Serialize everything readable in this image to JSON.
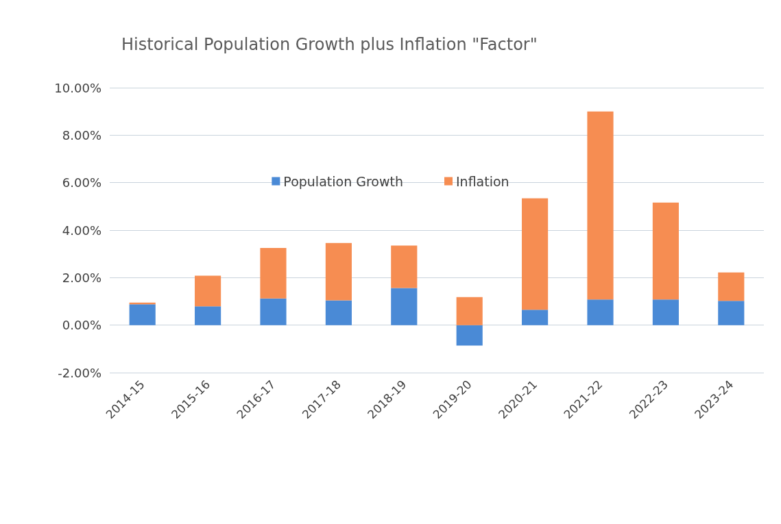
{
  "chart_data": {
    "type": "bar",
    "title": "Historical Population Growth plus Inflation \"Factor\"",
    "categories": [
      "2014-15",
      "2015-16",
      "2016-17",
      "2017-18",
      "2018-19",
      "2019-20",
      "2020-21",
      "2021-22",
      "2022-23",
      "2023-24"
    ],
    "series": [
      {
        "name": "Population Growth",
        "color": "#4a8ad6",
        "values": [
          0.88,
          0.79,
          1.12,
          1.04,
          1.56,
          -0.86,
          0.65,
          1.08,
          1.08,
          1.02
        ]
      },
      {
        "name": "Inflation",
        "color": "#f68d52",
        "values": [
          0.07,
          1.29,
          2.13,
          2.42,
          1.79,
          1.18,
          4.69,
          7.92,
          4.08,
          1.2
        ]
      }
    ],
    "stacked": true,
    "ylim": [
      -2,
      10
    ],
    "yticks": [
      {
        "value": -2,
        "label": "-2.00%"
      },
      {
        "value": 0,
        "label": "0.00%"
      },
      {
        "value": 2,
        "label": "2.00%"
      },
      {
        "value": 4,
        "label": "4.00%"
      },
      {
        "value": 6,
        "label": "6.00%"
      },
      {
        "value": 8,
        "label": "8.00%"
      },
      {
        "value": 10,
        "label": "10.00%"
      }
    ],
    "grid": "y",
    "legend": "top"
  }
}
